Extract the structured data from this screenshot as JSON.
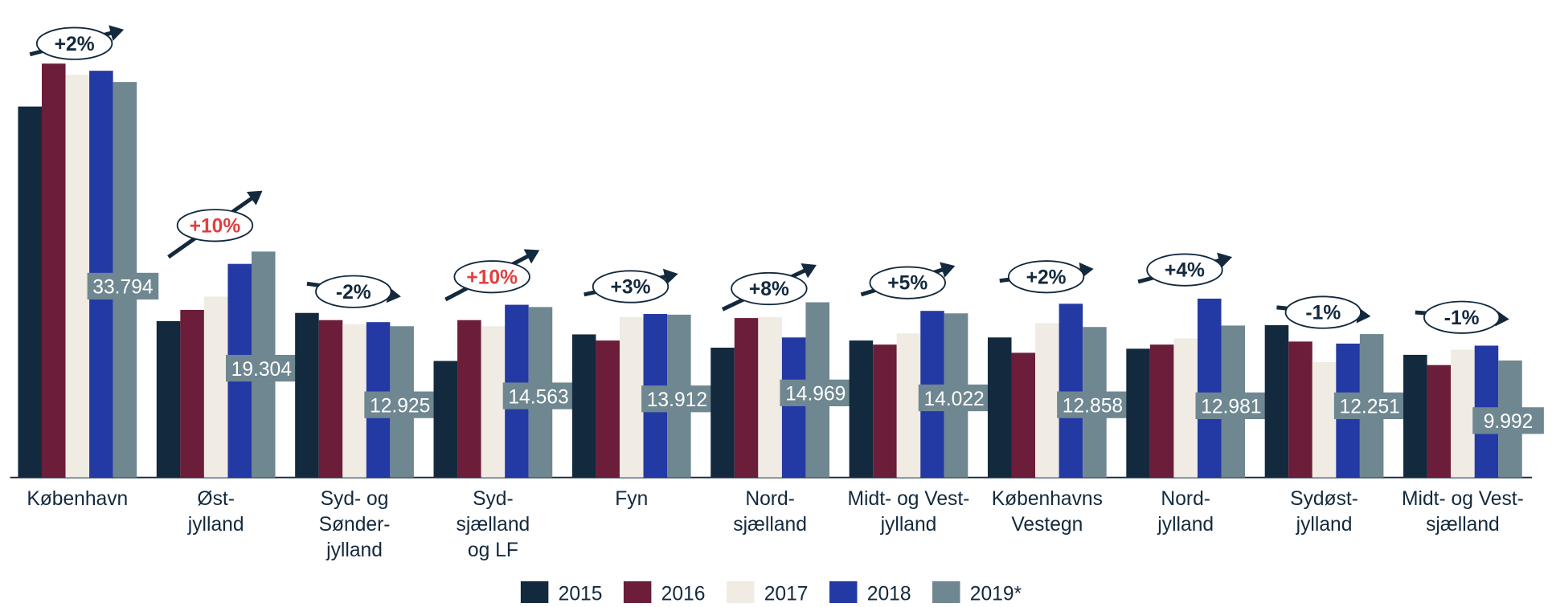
{
  "chart_data": {
    "type": "bar",
    "categories": [
      "København",
      "Øst-\njylland",
      "Syd- og\nSønder-\njylland",
      "Syd-\nsjælland\nog LF",
      "Fyn",
      "Nord-\nsjælland",
      "Midt- og Vest-\njylland",
      "Københavns\nVestegn",
      "Nord-\njylland",
      "Sydøst-\njylland",
      "Midt- og Vest-\nsjælland"
    ],
    "series": [
      {
        "name": "2015",
        "color": "#13293d",
        "values": [
          31698,
          13360,
          14059,
          9955,
          12225,
          11090,
          11701,
          11963,
          11002,
          13011,
          10478
        ]
      },
      {
        "name": "2016",
        "color": "#6b1d3a",
        "values": [
          35365,
          14320,
          13447,
          13447,
          11701,
          13622,
          11352,
          10653,
          11352,
          11614,
          9605
        ]
      },
      {
        "name": "2017",
        "color": "#f0ebe3",
        "values": [
          34404,
          15456,
          13098,
          12923,
          13709,
          13709,
          12312,
          13185,
          11876,
          9867,
          10915
        ]
      },
      {
        "name": "2018",
        "color": "#2339a3",
        "values": [
          34754,
          18250,
          13273,
          14757,
          13971,
          11963,
          14233,
          14844,
          15281,
          11439,
          11264
        ]
      },
      {
        "name": "2019*",
        "color": "#6f8790",
        "values": [
          33794,
          19304,
          12925,
          14563,
          13912,
          14969,
          14022,
          12858,
          12981,
          12251,
          9992
        ],
        "value_labels": [
          "33.794",
          "19.304",
          "12.925",
          "14.563",
          "13.912",
          "14.969",
          "14.022",
          "12.858",
          "12.981",
          "12.251",
          "9.992"
        ]
      }
    ],
    "annotations": [
      "+2%",
      "+10%",
      "-2%",
      "+10%",
      "+3%",
      "+8%",
      "+5%",
      "+2%",
      "+4%",
      "-1%",
      "-1%"
    ],
    "annotation_colors": [
      "#13293d",
      "#e04040",
      "#13293d",
      "#e04040",
      "#13293d",
      "#13293d",
      "#13293d",
      "#13293d",
      "#13293d",
      "#13293d",
      "#13293d"
    ],
    "ylim": [
      0,
      37000
    ],
    "legend": "bottom"
  }
}
